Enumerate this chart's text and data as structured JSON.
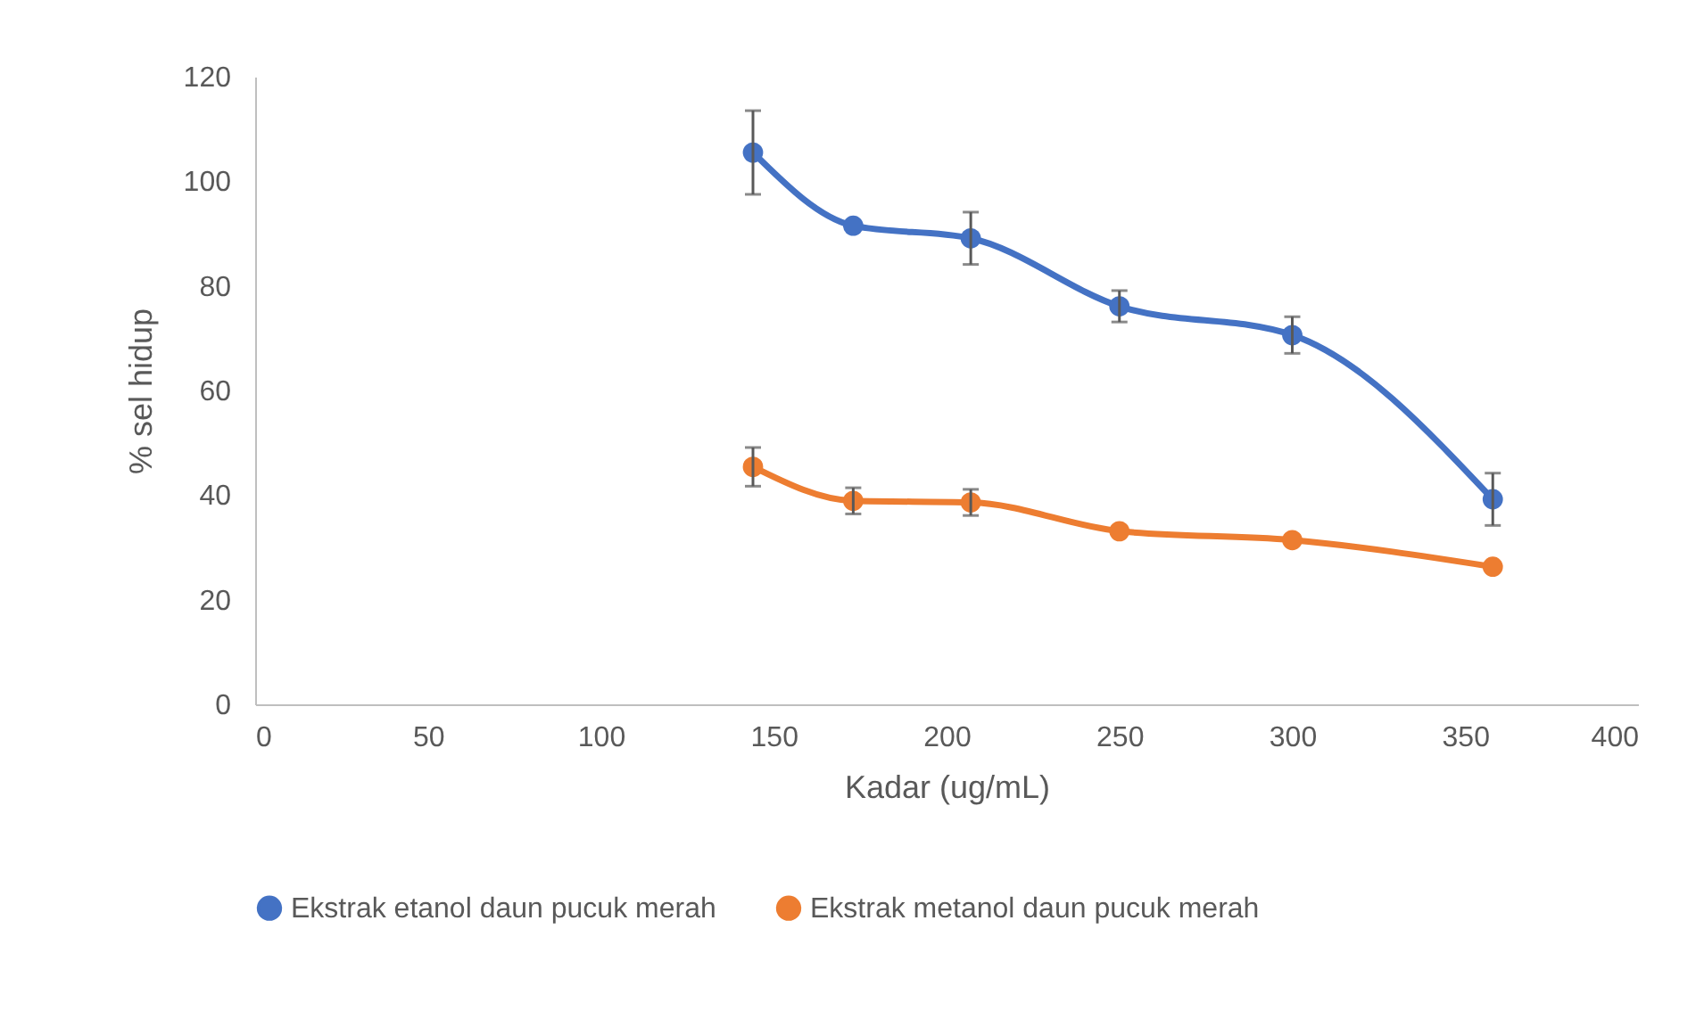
{
  "chart_data": {
    "type": "line",
    "xlabel": "Kadar (ug/mL)",
    "ylabel": "% sel hidup",
    "x": [
      144,
      173,
      207,
      250,
      300,
      358
    ],
    "xlim": [
      0,
      400
    ],
    "xticks": [
      0,
      50,
      100,
      150,
      200,
      250,
      300,
      350,
      400
    ],
    "ylim": [
      0,
      120
    ],
    "yticks": [
      0,
      20,
      40,
      60,
      80,
      100,
      120
    ],
    "series": [
      {
        "name": "Ekstrak etanol daun pucuk merah",
        "color": "#4472c4",
        "values": [
          105.5,
          91.5,
          89.1,
          76.1,
          70.6,
          39.2
        ],
        "errors": [
          8,
          null,
          5,
          3,
          3.5,
          5
        ]
      },
      {
        "name": "Ekstrak metanol daun pucuk merah",
        "color": "#ed7d31",
        "values": [
          45.4,
          38.9,
          38.6,
          33.1,
          31.4,
          26.3
        ],
        "errors": [
          3.7,
          2.5,
          2.5,
          null,
          null,
          null
        ]
      }
    ],
    "grid": false,
    "legend": "bottom",
    "marker": "circle",
    "line_style": "solid"
  }
}
